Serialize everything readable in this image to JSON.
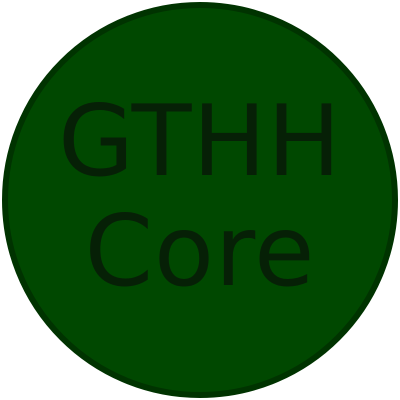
{
  "badge": {
    "line1": "GTHH",
    "line2": "Core",
    "colors": {
      "fill": "#004800",
      "border": "#003300",
      "text": "#062006",
      "background": "#ffffff"
    }
  }
}
